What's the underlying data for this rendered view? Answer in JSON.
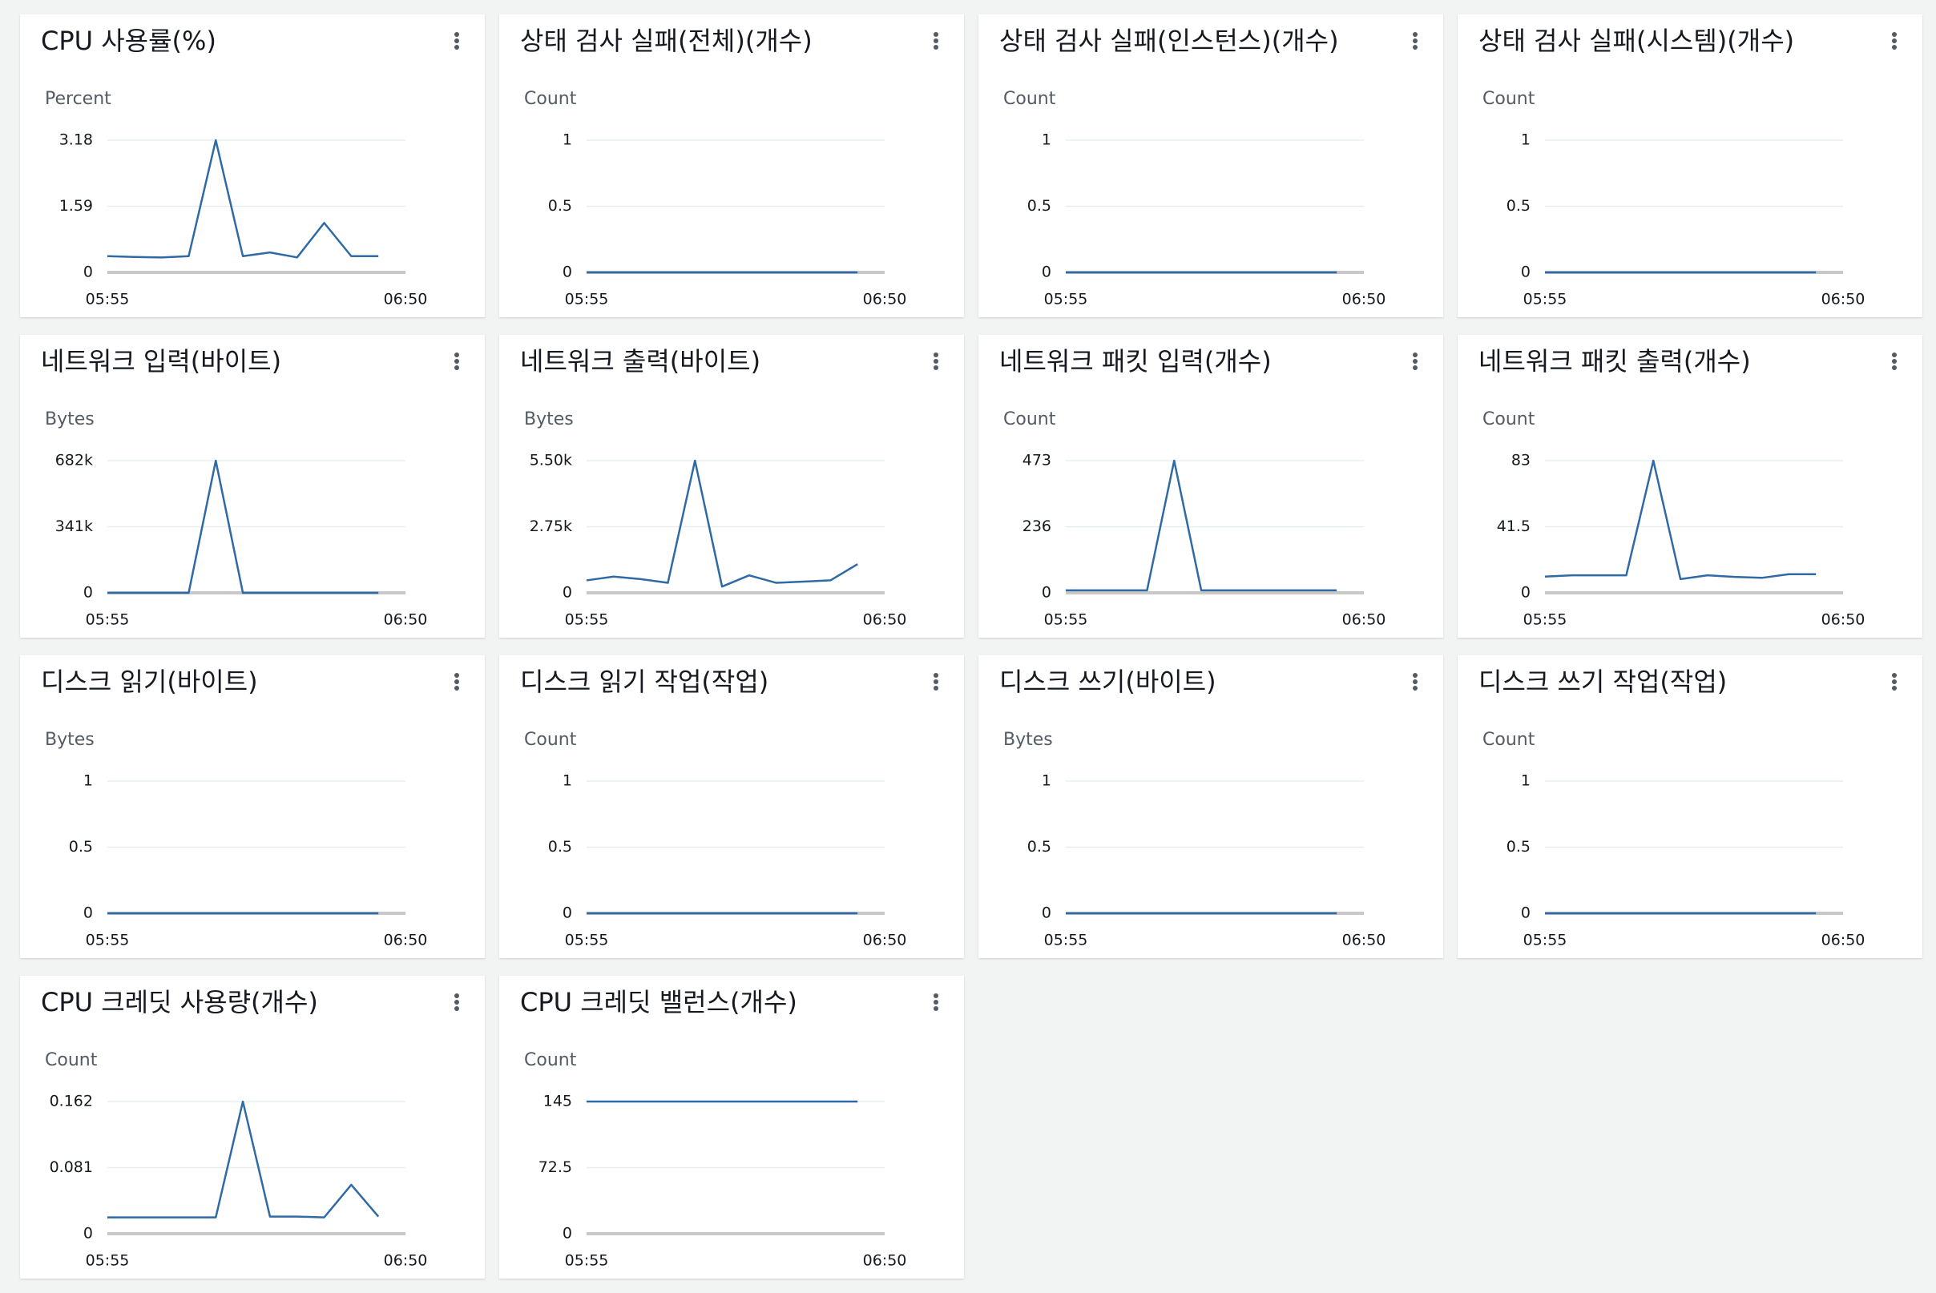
{
  "chart_data": [
    {
      "type": "line",
      "title": "CPU 사용률(%)",
      "y_label": "Percent",
      "x": [
        "05:55",
        "06:00",
        "06:05",
        "06:10",
        "06:15",
        "06:20",
        "06:25",
        "06:30",
        "06:35",
        "06:40",
        "06:45"
      ],
      "values": [
        0.39,
        0.37,
        0.36,
        0.39,
        3.18,
        0.39,
        0.48,
        0.36,
        1.19,
        0.39,
        0.39
      ],
      "color": "#2f6aa5",
      "xlim": [
        "05:55",
        "06:50"
      ],
      "xticks": [
        "05:55",
        "06:50"
      ],
      "ylim": [
        0,
        3.18
      ],
      "yticks": [
        0,
        1.59,
        3.18
      ],
      "grid": true
    },
    {
      "type": "line",
      "title": "상태 검사 실패(전체)(개수)",
      "y_label": "Count",
      "x": [
        "05:55",
        "06:00",
        "06:05",
        "06:10",
        "06:15",
        "06:20",
        "06:25",
        "06:30",
        "06:35",
        "06:40",
        "06:45"
      ],
      "values": [
        0,
        0,
        0,
        0,
        0,
        0,
        0,
        0,
        0,
        0,
        0
      ],
      "color": "#2f6aa5",
      "xlim": [
        "05:55",
        "06:50"
      ],
      "xticks": [
        "05:55",
        "06:50"
      ],
      "ylim": [
        0,
        1
      ],
      "yticks": [
        0,
        0.5,
        1
      ],
      "grid": true
    },
    {
      "type": "line",
      "title": "상태 검사 실패(인스턴스)(개수)",
      "y_label": "Count",
      "x": [
        "05:55",
        "06:00",
        "06:05",
        "06:10",
        "06:15",
        "06:20",
        "06:25",
        "06:30",
        "06:35",
        "06:40",
        "06:45"
      ],
      "values": [
        0,
        0,
        0,
        0,
        0,
        0,
        0,
        0,
        0,
        0,
        0
      ],
      "color": "#2f6aa5",
      "xlim": [
        "05:55",
        "06:50"
      ],
      "xticks": [
        "05:55",
        "06:50"
      ],
      "ylim": [
        0,
        1
      ],
      "yticks": [
        0,
        0.5,
        1
      ],
      "grid": true
    },
    {
      "type": "line",
      "title": "상태 검사 실패(시스템)(개수)",
      "y_label": "Count",
      "x": [
        "05:55",
        "06:00",
        "06:05",
        "06:10",
        "06:15",
        "06:20",
        "06:25",
        "06:30",
        "06:35",
        "06:40",
        "06:45"
      ],
      "values": [
        0,
        0,
        0,
        0,
        0,
        0,
        0,
        0,
        0,
        0,
        0
      ],
      "color": "#2f6aa5",
      "xlim": [
        "05:55",
        "06:50"
      ],
      "xticks": [
        "05:55",
        "06:50"
      ],
      "ylim": [
        0,
        1
      ],
      "yticks": [
        0,
        0.5,
        1
      ],
      "grid": true
    },
    {
      "type": "line",
      "title": "네트워크 입력(바이트)",
      "y_label": "Bytes",
      "x": [
        "05:55",
        "06:00",
        "06:05",
        "06:10",
        "06:15",
        "06:20",
        "06:25",
        "06:30",
        "06:35",
        "06:40",
        "06:45"
      ],
      "values": [
        0,
        0,
        0,
        0,
        682000,
        0,
        0,
        0,
        0,
        0,
        0
      ],
      "color": "#2f6aa5",
      "xlim": [
        "05:55",
        "06:50"
      ],
      "xticks": [
        "05:55",
        "06:50"
      ],
      "ylim": [
        0,
        682000
      ],
      "yticks": [
        0,
        {
          "value": 341000,
          "label": "341k"
        },
        {
          "value": 682000,
          "label": "682k"
        }
      ],
      "grid": true
    },
    {
      "type": "line",
      "title": "네트워크 출력(바이트)",
      "y_label": "Bytes",
      "x": [
        "05:55",
        "06:00",
        "06:05",
        "06:10",
        "06:15",
        "06:20",
        "06:25",
        "06:30",
        "06:35",
        "06:40",
        "06:45"
      ],
      "values": [
        519,
        675,
        570,
        415,
        5500,
        260,
        727,
        415,
        467,
        519,
        1193
      ],
      "color": "#2f6aa5",
      "xlim": [
        "05:55",
        "06:50"
      ],
      "xticks": [
        "05:55",
        "06:50"
      ],
      "ylim": [
        0,
        5500
      ],
      "yticks": [
        0,
        {
          "value": 2750,
          "label": "2.75k"
        },
        {
          "value": 5500,
          "label": "5.50k"
        }
      ],
      "grid": true
    },
    {
      "type": "line",
      "title": "네트워크 패킷 입력(개수)",
      "y_label": "Count",
      "x": [
        "05:55",
        "06:00",
        "06:05",
        "06:10",
        "06:15",
        "06:20",
        "06:25",
        "06:30",
        "06:35",
        "06:40",
        "06:45"
      ],
      "values": [
        9,
        9,
        9,
        9,
        473,
        9,
        9,
        9,
        9,
        9,
        9
      ],
      "color": "#2f6aa5",
      "xlim": [
        "05:55",
        "06:50"
      ],
      "xticks": [
        "05:55",
        "06:50"
      ],
      "ylim": [
        0,
        473
      ],
      "yticks": [
        0,
        236,
        473
      ],
      "grid": true
    },
    {
      "type": "line",
      "title": "네트워크 패킷 출력(개수)",
      "y_label": "Count",
      "x": [
        "05:55",
        "06:00",
        "06:05",
        "06:10",
        "06:15",
        "06:20",
        "06:25",
        "06:30",
        "06:35",
        "06:40",
        "06:45"
      ],
      "values": [
        10.2,
        11,
        11,
        11,
        83,
        8.6,
        11,
        10,
        9.4,
        11.7,
        11.7
      ],
      "color": "#2f6aa5",
      "xlim": [
        "05:55",
        "06:50"
      ],
      "xticks": [
        "05:55",
        "06:50"
      ],
      "ylim": [
        0,
        83
      ],
      "yticks": [
        0,
        41.5,
        83
      ],
      "grid": true
    },
    {
      "type": "line",
      "title": "디스크 읽기(바이트)",
      "y_label": "Bytes",
      "x": [
        "05:55",
        "06:00",
        "06:05",
        "06:10",
        "06:15",
        "06:20",
        "06:25",
        "06:30",
        "06:35",
        "06:40",
        "06:45"
      ],
      "values": [
        0,
        0,
        0,
        0,
        0,
        0,
        0,
        0,
        0,
        0,
        0
      ],
      "color": "#2f6aa5",
      "xlim": [
        "05:55",
        "06:50"
      ],
      "xticks": [
        "05:55",
        "06:50"
      ],
      "ylim": [
        0,
        1
      ],
      "yticks": [
        0,
        0.5,
        1
      ],
      "grid": true
    },
    {
      "type": "line",
      "title": "디스크 읽기 작업(작업)",
      "y_label": "Count",
      "x": [
        "05:55",
        "06:00",
        "06:05",
        "06:10",
        "06:15",
        "06:20",
        "06:25",
        "06:30",
        "06:35",
        "06:40",
        "06:45"
      ],
      "values": [
        0,
        0,
        0,
        0,
        0,
        0,
        0,
        0,
        0,
        0,
        0
      ],
      "color": "#2f6aa5",
      "xlim": [
        "05:55",
        "06:50"
      ],
      "xticks": [
        "05:55",
        "06:50"
      ],
      "ylim": [
        0,
        1
      ],
      "yticks": [
        0,
        0.5,
        1
      ],
      "grid": true
    },
    {
      "type": "line",
      "title": "디스크 쓰기(바이트)",
      "y_label": "Bytes",
      "x": [
        "05:55",
        "06:00",
        "06:05",
        "06:10",
        "06:15",
        "06:20",
        "06:25",
        "06:30",
        "06:35",
        "06:40",
        "06:45"
      ],
      "values": [
        0,
        0,
        0,
        0,
        0,
        0,
        0,
        0,
        0,
        0,
        0
      ],
      "color": "#2f6aa5",
      "xlim": [
        "05:55",
        "06:50"
      ],
      "xticks": [
        "05:55",
        "06:50"
      ],
      "ylim": [
        0,
        1
      ],
      "yticks": [
        0,
        0.5,
        1
      ],
      "grid": true
    },
    {
      "type": "line",
      "title": "디스크 쓰기 작업(작업)",
      "y_label": "Count",
      "x": [
        "05:55",
        "06:00",
        "06:05",
        "06:10",
        "06:15",
        "06:20",
        "06:25",
        "06:30",
        "06:35",
        "06:40",
        "06:45"
      ],
      "values": [
        0,
        0,
        0,
        0,
        0,
        0,
        0,
        0,
        0,
        0,
        0
      ],
      "color": "#2f6aa5",
      "xlim": [
        "05:55",
        "06:50"
      ],
      "xticks": [
        "05:55",
        "06:50"
      ],
      "ylim": [
        0,
        1
      ],
      "yticks": [
        0,
        0.5,
        1
      ],
      "grid": true
    },
    {
      "type": "line",
      "title": "CPU 크레딧 사용량(개수)",
      "y_label": "Count",
      "x": [
        "05:55",
        "06:00",
        "06:05",
        "06:10",
        "06:15",
        "06:20",
        "06:25",
        "06:30",
        "06:35",
        "06:40",
        "06:45"
      ],
      "values": [
        0.02,
        0.02,
        0.02,
        0.02,
        0.02,
        0.162,
        0.021,
        0.021,
        0.02,
        0.06,
        0.021
      ],
      "color": "#2f6aa5",
      "xlim": [
        "05:55",
        "06:50"
      ],
      "xticks": [
        "05:55",
        "06:50"
      ],
      "ylim": [
        0,
        0.162
      ],
      "yticks": [
        0,
        0.081,
        0.162
      ],
      "grid": true
    },
    {
      "type": "line",
      "title": "CPU 크레딧 밸런스(개수)",
      "y_label": "Count",
      "x": [
        "05:55",
        "06:00",
        "06:05",
        "06:10",
        "06:15",
        "06:20",
        "06:25",
        "06:30",
        "06:35",
        "06:40",
        "06:45"
      ],
      "values": [
        145,
        145,
        145,
        145,
        145,
        145,
        145,
        145,
        145,
        145,
        145
      ],
      "color": "#2f6aa5",
      "xlim": [
        "05:55",
        "06:50"
      ],
      "xticks": [
        "05:55",
        "06:50"
      ],
      "ylim": [
        0,
        145
      ],
      "yticks": [
        0,
        72.5,
        145
      ],
      "grid": true
    }
  ]
}
